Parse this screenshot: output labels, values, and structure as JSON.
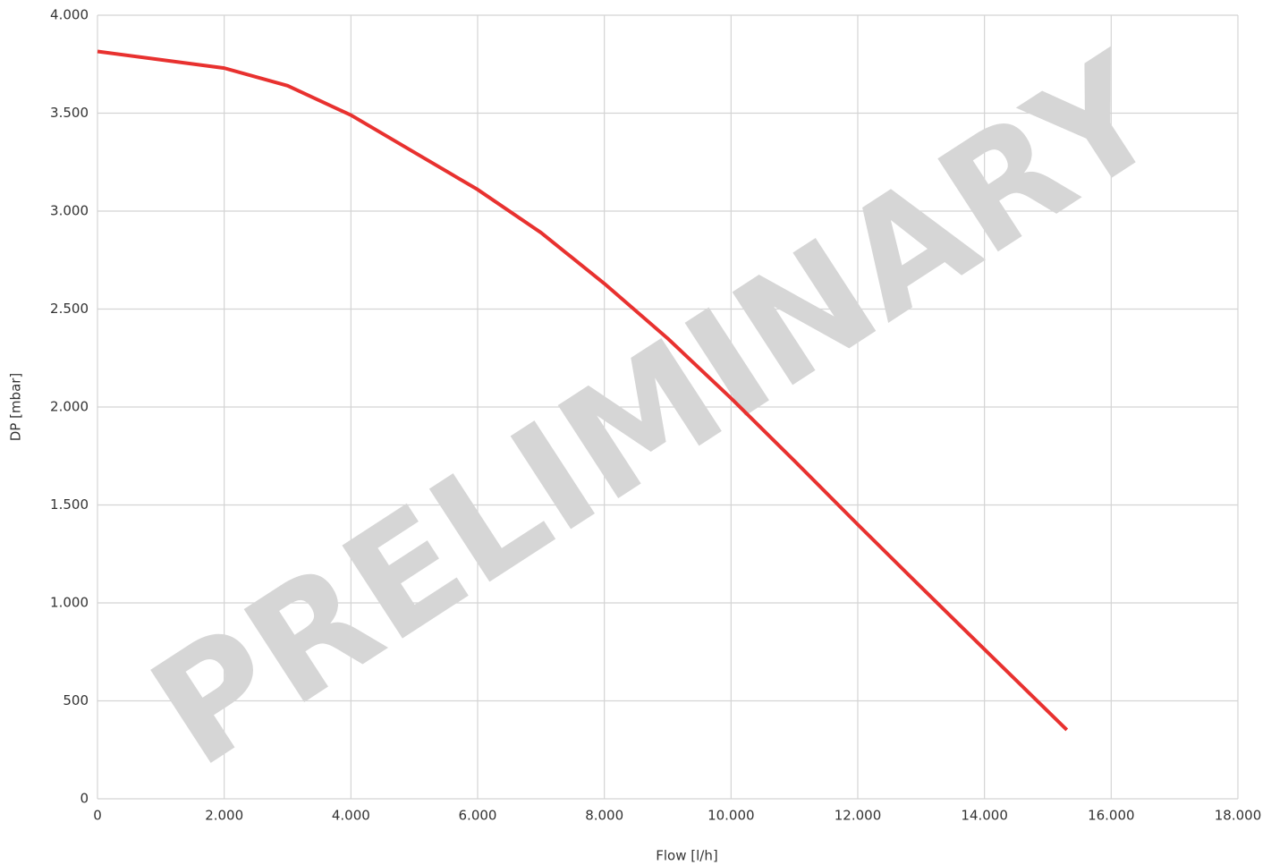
{
  "chart_data": {
    "type": "line",
    "x_label": "Flow [l/h]",
    "y_label": "DP [mbar]",
    "annotation": "PRELIMINARY",
    "x": [
      0,
      2000,
      3000,
      4000,
      5000,
      6000,
      7000,
      8000,
      9000,
      10000,
      11000,
      12000,
      13000,
      14000,
      15300
    ],
    "series": [
      {
        "color": "#e8312f",
        "values": [
          3815,
          3730,
          3640,
          3490,
          3300,
          3110,
          2890,
          2630,
          2350,
          2045,
          1725,
          1400,
          1080,
          763,
          352
        ]
      }
    ],
    "xlim": [
      0,
      18000
    ],
    "xticks": [
      0,
      {
        "value": 2000,
        "label": "2.000"
      },
      {
        "value": 4000,
        "label": "4.000"
      },
      {
        "value": 6000,
        "label": "6.000"
      },
      {
        "value": 8000,
        "label": "8.000"
      },
      {
        "value": 10000,
        "label": "10.000"
      },
      {
        "value": 12000,
        "label": "12.000"
      },
      {
        "value": 14000,
        "label": "14.000"
      },
      {
        "value": 16000,
        "label": "16.000"
      },
      {
        "value": 18000,
        "label": "18.000"
      }
    ],
    "ylim": [
      0,
      4000
    ],
    "yticks": [
      0,
      500,
      {
        "value": 1000,
        "label": "1.000"
      },
      {
        "value": 1500,
        "label": "1.500"
      },
      {
        "value": 2000,
        "label": "2.000"
      },
      {
        "value": 2500,
        "label": "2.500"
      },
      {
        "value": 3000,
        "label": "3.000"
      },
      {
        "value": 3500,
        "label": "3.500"
      },
      {
        "value": 4000,
        "label": "4.000"
      }
    ],
    "grid": true
  }
}
